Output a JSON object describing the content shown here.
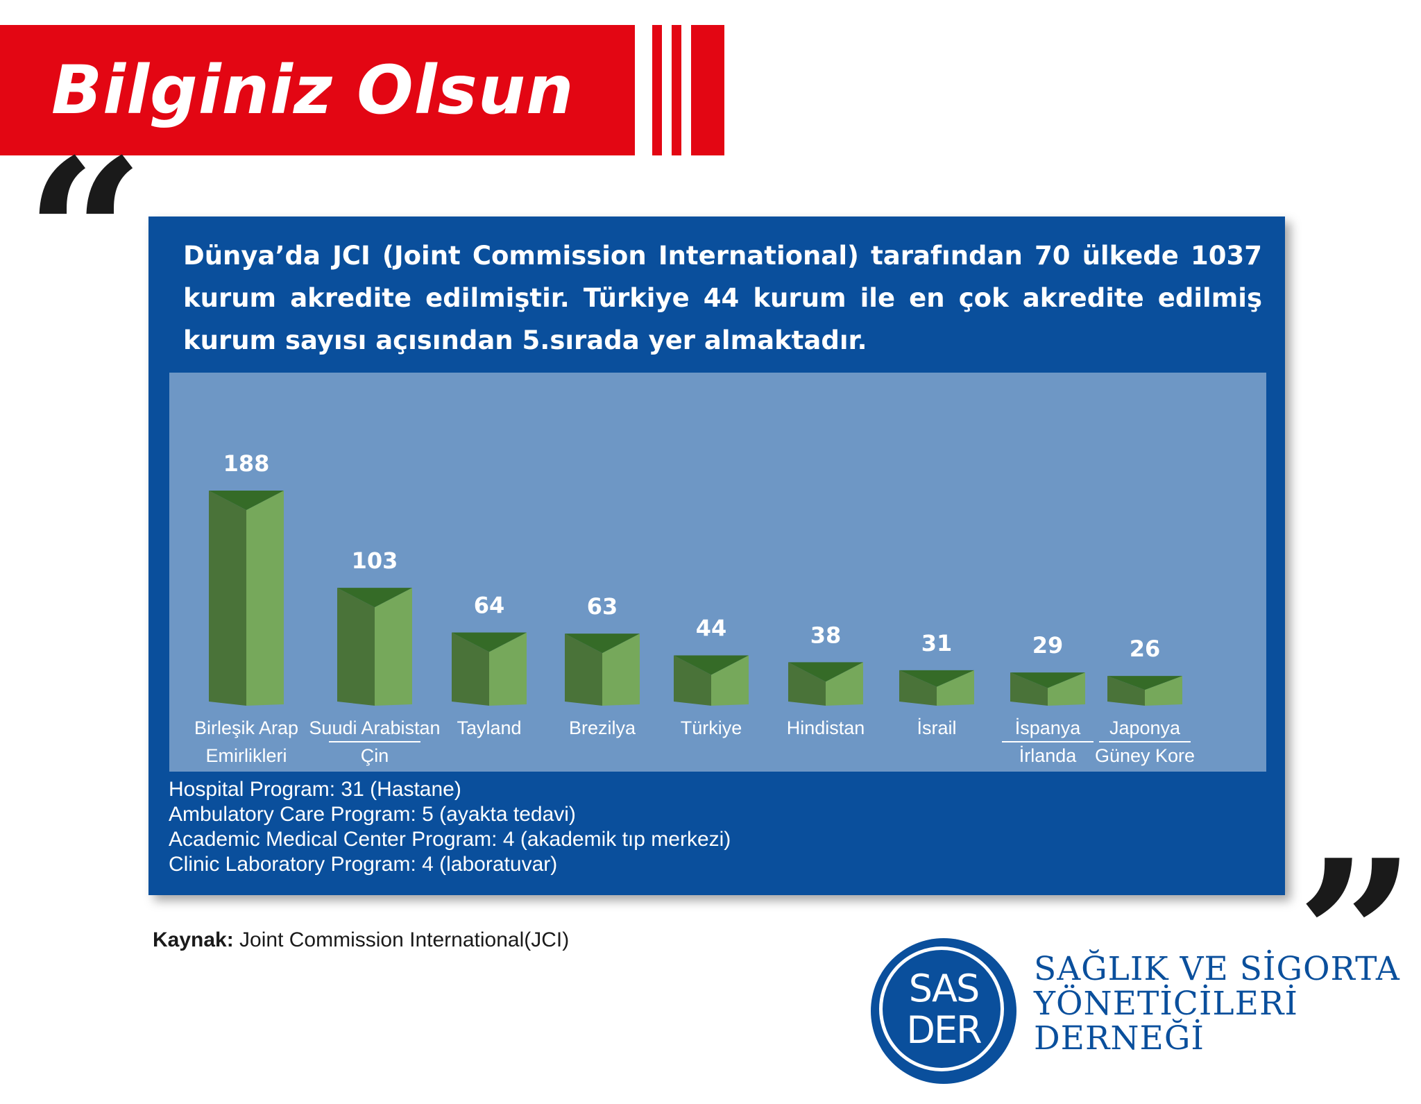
{
  "header": {
    "title": "Bilginiz Olsun",
    "accent_color": "#e30613"
  },
  "headline": "Dünya’da JCI (Joint Commission International) tarafından 70 ülkede 1037 kurum akredite edilmiştir. Türkiye 44 kurum ile en çok akredite edilmiş kurum sayısı açısından 5.sırada yer almaktadır.",
  "quotes": {
    "open": "“",
    "close": "”"
  },
  "chart_data": {
    "type": "bar",
    "title": "",
    "xlabel": "",
    "ylabel": "",
    "ylim": [
      0,
      200
    ],
    "grid": false,
    "legend": "none",
    "bar_color": "#76a85b",
    "bar_shadow_color": "#4a7339",
    "categories": [
      {
        "lines": [
          "Birleşik Arap",
          "Emirlikleri"
        ],
        "divided": false
      },
      {
        "lines": [
          "Suudi Arabistan",
          "Çin"
        ],
        "divided": true
      },
      {
        "lines": [
          "Tayland"
        ],
        "divided": false
      },
      {
        "lines": [
          "Brezilya"
        ],
        "divided": false
      },
      {
        "lines": [
          "Türkiye"
        ],
        "divided": false
      },
      {
        "lines": [
          "Hindistan"
        ],
        "divided": false
      },
      {
        "lines": [
          "İsrail"
        ],
        "divided": false
      },
      {
        "lines": [
          "İspanya",
          "İrlanda"
        ],
        "divided": true
      },
      {
        "lines": [
          "Japonya",
          "Güney Kore"
        ],
        "divided": true
      }
    ],
    "values": [
      188,
      103,
      64,
      63,
      44,
      38,
      31,
      29,
      26
    ]
  },
  "notes": [
    "Hospital Program:  31 (Hastane)",
    "Ambulatory Care Program:  5 (ayakta tedavi)",
    "Academic Medical Center Program:  4 (akademik tıp merkezi)",
    "Clinic Laboratory Program:  4 (laboratuvar)"
  ],
  "source": {
    "label": "Kaynak:",
    "text": " Joint Commission International(JCI)"
  },
  "logo": {
    "line1": "SAS",
    "line2": "DER",
    "org_lines": [
      "SAĞLIK VE SİGORTA",
      "YÖNETİCİLERİ",
      "DERNEĞİ"
    ]
  }
}
